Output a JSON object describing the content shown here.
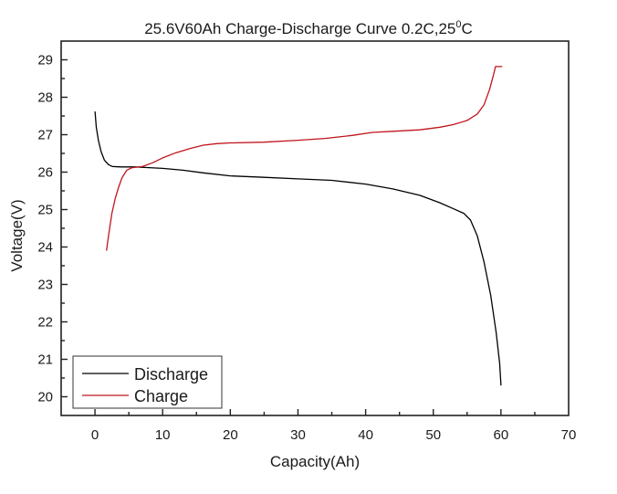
{
  "chart_data": {
    "type": "line",
    "title": "25.6V60Ah Charge-Discharge Curve  0.2C,25",
    "title_superscript": "0",
    "title_suffix": "C",
    "xlabel": "Capacity(Ah)",
    "ylabel": "Voltage(V)",
    "xlim": [
      -5,
      70
    ],
    "ylim": [
      19.5,
      29.5
    ],
    "x_ticks": [
      0,
      10,
      20,
      30,
      40,
      50,
      60,
      70
    ],
    "y_ticks": [
      20,
      21,
      22,
      23,
      24,
      25,
      26,
      27,
      28,
      29
    ],
    "x_minor_step": 5,
    "y_minor_step": 0.5,
    "grid": false,
    "legend_position": "bottom-left",
    "series": [
      {
        "name": "Discharge",
        "color": "#000000",
        "points": [
          [
            0,
            27.62
          ],
          [
            0.2,
            27.2
          ],
          [
            0.5,
            26.85
          ],
          [
            0.9,
            26.55
          ],
          [
            1.4,
            26.32
          ],
          [
            2.0,
            26.2
          ],
          [
            2.6,
            26.15
          ],
          [
            4,
            26.14
          ],
          [
            6,
            26.14
          ],
          [
            8,
            26.12
          ],
          [
            10,
            26.1
          ],
          [
            13,
            26.05
          ],
          [
            16,
            25.98
          ],
          [
            20,
            25.9
          ],
          [
            25,
            25.86
          ],
          [
            30,
            25.82
          ],
          [
            35,
            25.78
          ],
          [
            40,
            25.68
          ],
          [
            44,
            25.55
          ],
          [
            48,
            25.38
          ],
          [
            51,
            25.18
          ],
          [
            53,
            25.02
          ],
          [
            54.5,
            24.9
          ],
          [
            55.5,
            24.72
          ],
          [
            56.5,
            24.3
          ],
          [
            57.5,
            23.6
          ],
          [
            58.5,
            22.7
          ],
          [
            59.3,
            21.7
          ],
          [
            59.8,
            20.9
          ],
          [
            60,
            20.3
          ]
        ]
      },
      {
        "name": "Charge",
        "color": "#c0141c",
        "points": [
          [
            1.7,
            23.9
          ],
          [
            2.0,
            24.3
          ],
          [
            2.5,
            24.9
          ],
          [
            3.0,
            25.3
          ],
          [
            3.5,
            25.6
          ],
          [
            4.0,
            25.85
          ],
          [
            4.7,
            26.05
          ],
          [
            5.5,
            26.12
          ],
          [
            7,
            26.15
          ],
          [
            8.5,
            26.25
          ],
          [
            10,
            26.38
          ],
          [
            12,
            26.52
          ],
          [
            14,
            26.63
          ],
          [
            16,
            26.72
          ],
          [
            18,
            26.76
          ],
          [
            20,
            26.78
          ],
          [
            25,
            26.8
          ],
          [
            30,
            26.85
          ],
          [
            34,
            26.9
          ],
          [
            38,
            26.98
          ],
          [
            41,
            27.06
          ],
          [
            44,
            27.09
          ],
          [
            48,
            27.13
          ],
          [
            51,
            27.2
          ],
          [
            53,
            27.27
          ],
          [
            55,
            27.38
          ],
          [
            56.5,
            27.55
          ],
          [
            57.5,
            27.8
          ],
          [
            58.3,
            28.2
          ],
          [
            58.9,
            28.6
          ],
          [
            59.2,
            28.82
          ],
          [
            60.2,
            28.82
          ]
        ]
      }
    ]
  }
}
